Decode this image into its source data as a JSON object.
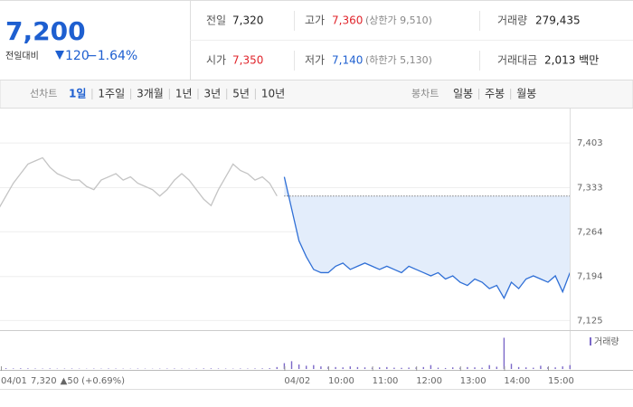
{
  "quote": {
    "price": "7,200",
    "change_label": "전일대비",
    "change": "120",
    "change_pct": "−1.64%",
    "items": [
      {
        "label": "전일",
        "value": "7,320"
      },
      {
        "label": "고가",
        "value": "7,360",
        "note": "(상한가 9,510)"
      },
      {
        "label": "거래량",
        "value": "279,435"
      },
      {
        "label": "시가",
        "value": "7,350"
      },
      {
        "label": "저가",
        "value": "7,140",
        "note": "(하한가 5,130)"
      },
      {
        "label": "거래대금",
        "value": "2,013 백만"
      }
    ]
  },
  "tabs": {
    "line_label": "선차트",
    "line_items": [
      "1일",
      "1주일",
      "3개월",
      "1년",
      "3년",
      "5년",
      "10년"
    ],
    "active": 0,
    "candle_label": "봉차트",
    "candle_items": [
      "일봉",
      "주봉",
      "월봉"
    ]
  },
  "chart_data": {
    "type": "line",
    "categories": [
      null,
      "04/01",
      null,
      null,
      null,
      null,
      null,
      null,
      null,
      null,
      null,
      null,
      null,
      null,
      null,
      null,
      null,
      null,
      null,
      null,
      null,
      null,
      null,
      null,
      null,
      null,
      null,
      null,
      null,
      null,
      null,
      null,
      null,
      null,
      null,
      null,
      null,
      null,
      null,
      null,
      "04/02",
      null,
      null,
      null,
      null,
      null,
      "10:00",
      null,
      null,
      null,
      null,
      null,
      "11:00",
      null,
      null,
      null,
      null,
      null,
      "12:00",
      null,
      null,
      null,
      null,
      null,
      "13:00",
      null,
      null,
      null,
      null,
      null,
      "14:00",
      null,
      null,
      null,
      null,
      null,
      "15:00",
      null,
      null,
      null
    ],
    "series": [
      {
        "color": "#c4c4c4",
        "values": [
          7290,
          7300,
          7320,
          7340,
          7355,
          7370,
          7375,
          7380,
          7365,
          7355,
          7350,
          7345,
          7345,
          7335,
          7330,
          7345,
          7350,
          7355,
          7345,
          7350,
          7340,
          7335,
          7330,
          7320,
          7330,
          7345,
          7355,
          7345,
          7330,
          7315,
          7305,
          7330,
          7350,
          7370,
          7360,
          7355,
          7345,
          7350,
          7340,
          7320,
          null,
          null,
          null,
          null,
          null,
          null,
          null,
          null,
          null,
          null,
          null,
          null,
          null,
          null,
          null,
          null,
          null,
          null,
          null,
          null,
          null,
          null,
          null,
          null,
          null,
          null,
          null,
          null,
          null,
          null,
          null,
          null,
          null,
          null,
          null,
          null,
          null,
          null,
          null,
          null
        ]
      },
      {
        "color": "#2f6fd6",
        "values": [
          null,
          null,
          null,
          null,
          null,
          null,
          null,
          null,
          null,
          null,
          null,
          null,
          null,
          null,
          null,
          null,
          null,
          null,
          null,
          null,
          null,
          null,
          null,
          null,
          null,
          null,
          null,
          null,
          null,
          null,
          null,
          null,
          null,
          null,
          null,
          null,
          null,
          null,
          null,
          null,
          7350,
          7300,
          7250,
          7225,
          7205,
          7200,
          7200,
          7210,
          7215,
          7205,
          7210,
          7215,
          7210,
          7205,
          7210,
          7205,
          7200,
          7210,
          7205,
          7200,
          7195,
          7200,
          7190,
          7195,
          7185,
          7180,
          7190,
          7185,
          7175,
          7180,
          7160,
          7185,
          7175,
          7190,
          7195,
          7190,
          7185,
          7195,
          7170,
          7200
        ]
      }
    ],
    "fill_color": "#e3edfb",
    "prev_close": {
      "value": 7320,
      "label": "7,320"
    },
    "prev_change": "▲50",
    "prev_change_pct": "(+0.69%)",
    "ylim": [
      7110,
      7457
    ],
    "yticks": [
      {
        "value": 7403,
        "label": "7,403"
      },
      {
        "value": 7333,
        "label": "7,333"
      },
      {
        "value": 7264,
        "label": "7,264"
      },
      {
        "value": 7194,
        "label": "7,194"
      },
      {
        "value": 7125,
        "label": "7,125"
      }
    ],
    "grid": true,
    "volume": {
      "name": "거래량",
      "color": "#7b68c8",
      "ylim": [
        0,
        50000
      ],
      "values": [
        2000,
        1500,
        1200,
        800,
        1000,
        900,
        700,
        600,
        800,
        500,
        600,
        700,
        500,
        400,
        600,
        500,
        700,
        600,
        500,
        400,
        600,
        500,
        400,
        500,
        600,
        700,
        500,
        400,
        600,
        800,
        900,
        700,
        600,
        500,
        700,
        600,
        800,
        900,
        1200,
        3000,
        9000,
        12000,
        7000,
        5000,
        6000,
        4000,
        3500,
        3000,
        2500,
        4000,
        3000,
        2500,
        2000,
        2500,
        3000,
        2000,
        1800,
        2200,
        2500,
        3000,
        6000,
        2000,
        1500,
        2500,
        2000,
        3000,
        2500,
        2000,
        6000,
        3500,
        48000,
        8000,
        3000,
        2500,
        2000,
        5000,
        3000,
        2500,
        4000,
        6000
      ]
    }
  }
}
